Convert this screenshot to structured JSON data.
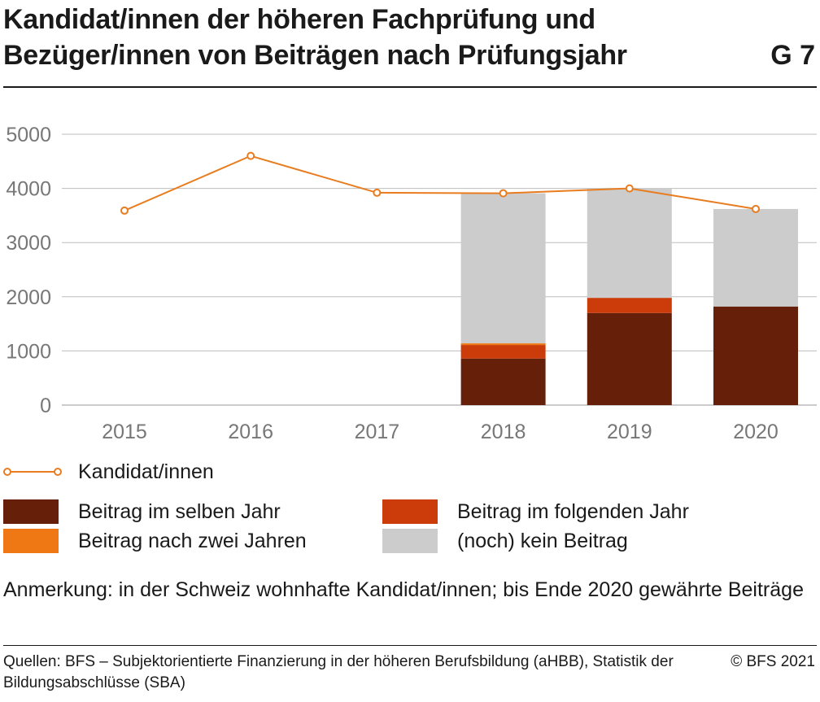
{
  "header": {
    "title": "Kandidat/innen der höheren Fachprüfung und Bezüger/innen von Beiträgen nach Prüfungsjahr",
    "graphic_number": "G 7"
  },
  "colors": {
    "same_year": "#66200a",
    "following_year": "#cc3c0a",
    "two_years": "#f07814",
    "no_contribution": "#cccccc",
    "candidates_line": "#e87c1e",
    "gridline": "#bdbdbd",
    "axis_text": "#777777"
  },
  "chart_data": {
    "type": "bar",
    "stacked": true,
    "categories": [
      "2015",
      "2016",
      "2017",
      "2018",
      "2019",
      "2020"
    ],
    "y_ticks": [
      "0",
      "1000",
      "2000",
      "3000",
      "4000",
      "5000"
    ],
    "ylim": [
      0,
      5000
    ],
    "grid": true,
    "series": [
      {
        "name": "Beitrag im selben Jahr",
        "color_key": "same_year",
        "values": [
          null,
          null,
          null,
          860,
          1700,
          1820
        ]
      },
      {
        "name": "Beitrag im folgenden Jahr",
        "color_key": "following_year",
        "values": [
          null,
          null,
          null,
          250,
          280,
          0
        ]
      },
      {
        "name": "Beitrag nach zwei Jahren",
        "color_key": "two_years",
        "values": [
          null,
          null,
          null,
          30,
          0,
          0
        ]
      },
      {
        "name": "(noch) kein Beitrag",
        "color_key": "no_contribution",
        "values": [
          null,
          null,
          null,
          2770,
          2020,
          1800
        ]
      }
    ],
    "line": {
      "name": "Kandidat/innen",
      "color_key": "candidates_line",
      "values": [
        3590,
        4600,
        3920,
        3910,
        4000,
        3620
      ]
    }
  },
  "legend": {
    "line_label": "Kandidat/innen",
    "same_year": "Beitrag im selben Jahr",
    "following_year": "Beitrag im folgenden Jahr",
    "two_years": "Beitrag nach zwei Jahren",
    "no_contribution": "(noch) kein Beitrag"
  },
  "note": "Anmerkung: in der Schweiz wohnhafte Kandidat/innen; bis Ende 2020 gewährte Beiträge",
  "source": "Quellen: BFS – Subjektorientierte Finanzierung in der höheren Berufsbildung (aHBB), Statistik der Bildungsabschlüsse (SBA)",
  "copyright": "© BFS 2021"
}
